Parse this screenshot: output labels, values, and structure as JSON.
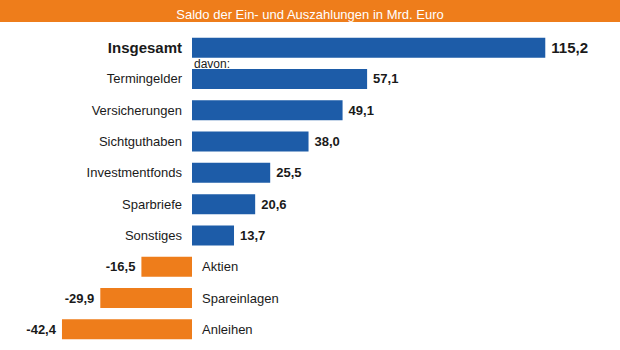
{
  "chart_data": {
    "type": "bar",
    "orientation": "horizontal",
    "title": "Saldo der Ein- und Auszahlungen in Mrd. Euro",
    "annotations": [
      "davon:"
    ],
    "categories": [
      "Insgesamt",
      "Termingelder",
      "Versicherungen",
      "Sichtguthaben",
      "Investmentfonds",
      "Sparbriefe",
      "Sonstiges",
      "Aktien",
      "Spareinlagen",
      "Anleihen"
    ],
    "values": [
      115.2,
      57.1,
      49.1,
      38.0,
      25.5,
      20.6,
      13.7,
      -16.5,
      -29.9,
      -42.4
    ],
    "value_labels": [
      "115,2",
      "57,1",
      "49,1",
      "38,0",
      "25,5",
      "20,6",
      "13,7",
      "-16,5",
      "-29,9",
      "-42,4"
    ],
    "colors": [
      "#1d5ca8",
      "#1d5ca8",
      "#1d5ca8",
      "#1d5ca8",
      "#1d5ca8",
      "#1d5ca8",
      "#1d5ca8",
      "#ee7d1b",
      "#ee7d1b",
      "#ee7d1b"
    ],
    "xlim": [
      -60,
      120
    ],
    "xticks": [
      -60,
      0,
      60,
      120
    ],
    "grid": false,
    "tick_labels": false,
    "data_labels": true
  }
}
